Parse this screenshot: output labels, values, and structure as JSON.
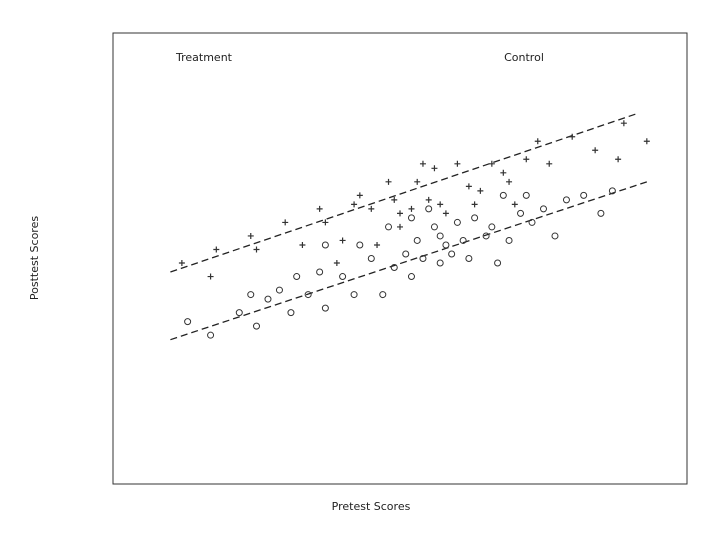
{
  "chart_data": {
    "type": "scatter",
    "xlabel": "Pretest Scores",
    "ylabel": "Posttest Scores",
    "axes_ticks": "none",
    "grid": false,
    "legend": {
      "placement": "top",
      "entries": [
        "Treatment",
        "Control"
      ]
    },
    "xlim": [
      0,
      100
    ],
    "ylim": [
      0,
      100
    ],
    "series": [
      {
        "name": "Treatment",
        "marker": "plus",
        "trendline": {
          "style": "dashed",
          "from": [
            10,
            47
          ],
          "to": [
            91,
            82
          ]
        },
        "points": [
          {
            "x": 12,
            "y": 49
          },
          {
            "x": 17,
            "y": 46
          },
          {
            "x": 18,
            "y": 52
          },
          {
            "x": 24,
            "y": 55
          },
          {
            "x": 25,
            "y": 52
          },
          {
            "x": 30,
            "y": 58
          },
          {
            "x": 33,
            "y": 53
          },
          {
            "x": 36,
            "y": 61
          },
          {
            "x": 37,
            "y": 58
          },
          {
            "x": 39,
            "y": 49
          },
          {
            "x": 40,
            "y": 54
          },
          {
            "x": 42,
            "y": 62
          },
          {
            "x": 43,
            "y": 64
          },
          {
            "x": 45,
            "y": 61
          },
          {
            "x": 46,
            "y": 53
          },
          {
            "x": 48,
            "y": 67
          },
          {
            "x": 49,
            "y": 63
          },
          {
            "x": 50,
            "y": 60
          },
          {
            "x": 50,
            "y": 57
          },
          {
            "x": 52,
            "y": 61
          },
          {
            "x": 53,
            "y": 67
          },
          {
            "x": 54,
            "y": 71
          },
          {
            "x": 55,
            "y": 63
          },
          {
            "x": 56,
            "y": 70
          },
          {
            "x": 57,
            "y": 62
          },
          {
            "x": 58,
            "y": 60
          },
          {
            "x": 60,
            "y": 71
          },
          {
            "x": 62,
            "y": 66
          },
          {
            "x": 63,
            "y": 62
          },
          {
            "x": 64,
            "y": 65
          },
          {
            "x": 66,
            "y": 71
          },
          {
            "x": 68,
            "y": 69
          },
          {
            "x": 69,
            "y": 67
          },
          {
            "x": 70,
            "y": 62
          },
          {
            "x": 72,
            "y": 72
          },
          {
            "x": 74,
            "y": 76
          },
          {
            "x": 76,
            "y": 71
          },
          {
            "x": 80,
            "y": 77
          },
          {
            "x": 84,
            "y": 74
          },
          {
            "x": 88,
            "y": 72
          },
          {
            "x": 89,
            "y": 80
          },
          {
            "x": 93,
            "y": 76
          }
        ]
      },
      {
        "name": "Control",
        "marker": "circle",
        "trendline": {
          "style": "dashed",
          "from": [
            10,
            32
          ],
          "to": [
            93,
            67
          ]
        },
        "points": [
          {
            "x": 13,
            "y": 36
          },
          {
            "x": 17,
            "y": 33
          },
          {
            "x": 22,
            "y": 38
          },
          {
            "x": 24,
            "y": 42
          },
          {
            "x": 25,
            "y": 35
          },
          {
            "x": 27,
            "y": 41
          },
          {
            "x": 29,
            "y": 43
          },
          {
            "x": 31,
            "y": 38
          },
          {
            "x": 32,
            "y": 46
          },
          {
            "x": 34,
            "y": 42
          },
          {
            "x": 36,
            "y": 47
          },
          {
            "x": 37,
            "y": 39
          },
          {
            "x": 37,
            "y": 53
          },
          {
            "x": 40,
            "y": 46
          },
          {
            "x": 42,
            "y": 42
          },
          {
            "x": 43,
            "y": 53
          },
          {
            "x": 45,
            "y": 50
          },
          {
            "x": 47,
            "y": 42
          },
          {
            "x": 48,
            "y": 57
          },
          {
            "x": 49,
            "y": 48
          },
          {
            "x": 51,
            "y": 51
          },
          {
            "x": 52,
            "y": 59
          },
          {
            "x": 52,
            "y": 46
          },
          {
            "x": 53,
            "y": 54
          },
          {
            "x": 54,
            "y": 50
          },
          {
            "x": 55,
            "y": 61
          },
          {
            "x": 56,
            "y": 57
          },
          {
            "x": 57,
            "y": 55
          },
          {
            "x": 57,
            "y": 49
          },
          {
            "x": 58,
            "y": 53
          },
          {
            "x": 59,
            "y": 51
          },
          {
            "x": 60,
            "y": 58
          },
          {
            "x": 61,
            "y": 54
          },
          {
            "x": 62,
            "y": 50
          },
          {
            "x": 63,
            "y": 59
          },
          {
            "x": 65,
            "y": 55
          },
          {
            "x": 66,
            "y": 57
          },
          {
            "x": 67,
            "y": 49
          },
          {
            "x": 68,
            "y": 64
          },
          {
            "x": 69,
            "y": 54
          },
          {
            "x": 71,
            "y": 60
          },
          {
            "x": 72,
            "y": 64
          },
          {
            "x": 73,
            "y": 58
          },
          {
            "x": 75,
            "y": 61
          },
          {
            "x": 77,
            "y": 55
          },
          {
            "x": 79,
            "y": 63
          },
          {
            "x": 82,
            "y": 64
          },
          {
            "x": 85,
            "y": 60
          },
          {
            "x": 87,
            "y": 65
          }
        ]
      }
    ]
  }
}
